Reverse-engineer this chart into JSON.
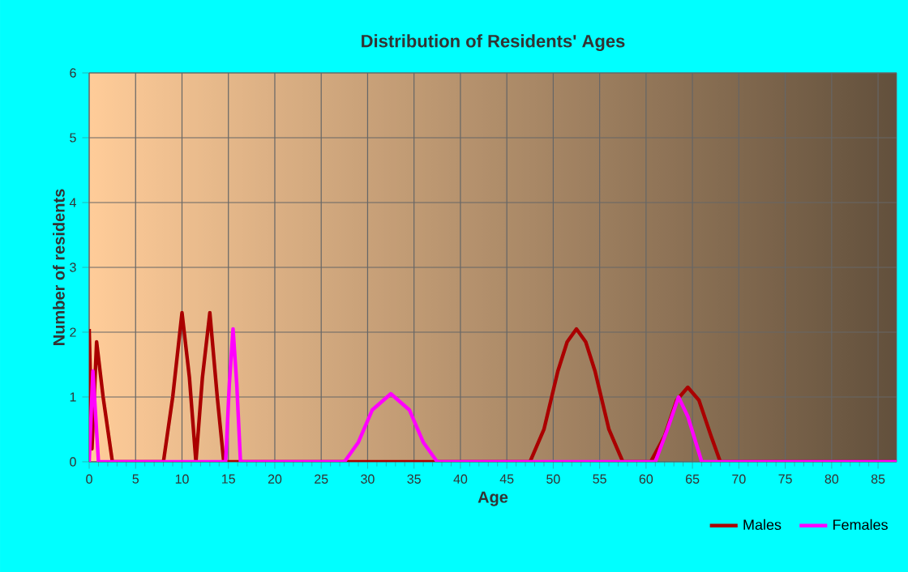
{
  "chart_data": {
    "type": "line",
    "title": "Distribution of Residents' Ages",
    "xlabel": "Age",
    "ylabel": "Number of residents",
    "xlim": [
      0,
      87
    ],
    "ylim": [
      0,
      6
    ],
    "xticks": [
      0,
      5,
      10,
      15,
      20,
      25,
      30,
      35,
      40,
      45,
      50,
      55,
      60,
      65,
      70,
      75,
      80,
      85
    ],
    "yticks": [
      0,
      1,
      2,
      3,
      4,
      5,
      6
    ],
    "grid": true,
    "legend": "bottom right",
    "marker": "none",
    "line_style": "solid",
    "series": [
      {
        "name": "Males",
        "color": "#aa0000",
        "x": [
          0,
          0.3,
          0.8,
          1.5,
          2.5,
          8,
          9,
          10,
          10.8,
          11.5,
          12.2,
          13,
          13.8,
          14.5,
          47.5,
          49,
          50.5,
          51.5,
          52.5,
          53.5,
          54.5,
          56,
          57.5,
          60.5,
          62,
          63.3,
          64.5,
          65.7,
          67,
          68,
          87
        ],
        "values": [
          2.05,
          0.2,
          1.85,
          1.0,
          0,
          0,
          1.0,
          2.3,
          1.3,
          0,
          1.3,
          2.3,
          1.0,
          0,
          0,
          0.5,
          1.4,
          1.85,
          2.05,
          1.85,
          1.4,
          0.5,
          0,
          0,
          0.4,
          0.95,
          1.15,
          0.95,
          0.4,
          0,
          0
        ]
      },
      {
        "name": "Females",
        "color": "#ff00ff",
        "x": [
          0,
          0.4,
          1,
          14.7,
          15.1,
          15.5,
          15.9,
          16.3,
          27.5,
          29,
          30.5,
          32.5,
          34.5,
          36,
          37.5,
          61,
          62.3,
          63.5,
          64.5,
          66,
          87
        ],
        "values": [
          0,
          1.4,
          0,
          0,
          1.2,
          2.05,
          1.2,
          0,
          0,
          0.3,
          0.8,
          1.05,
          0.8,
          0.3,
          0,
          0,
          0.5,
          1.0,
          0.7,
          0,
          0
        ]
      }
    ]
  }
}
